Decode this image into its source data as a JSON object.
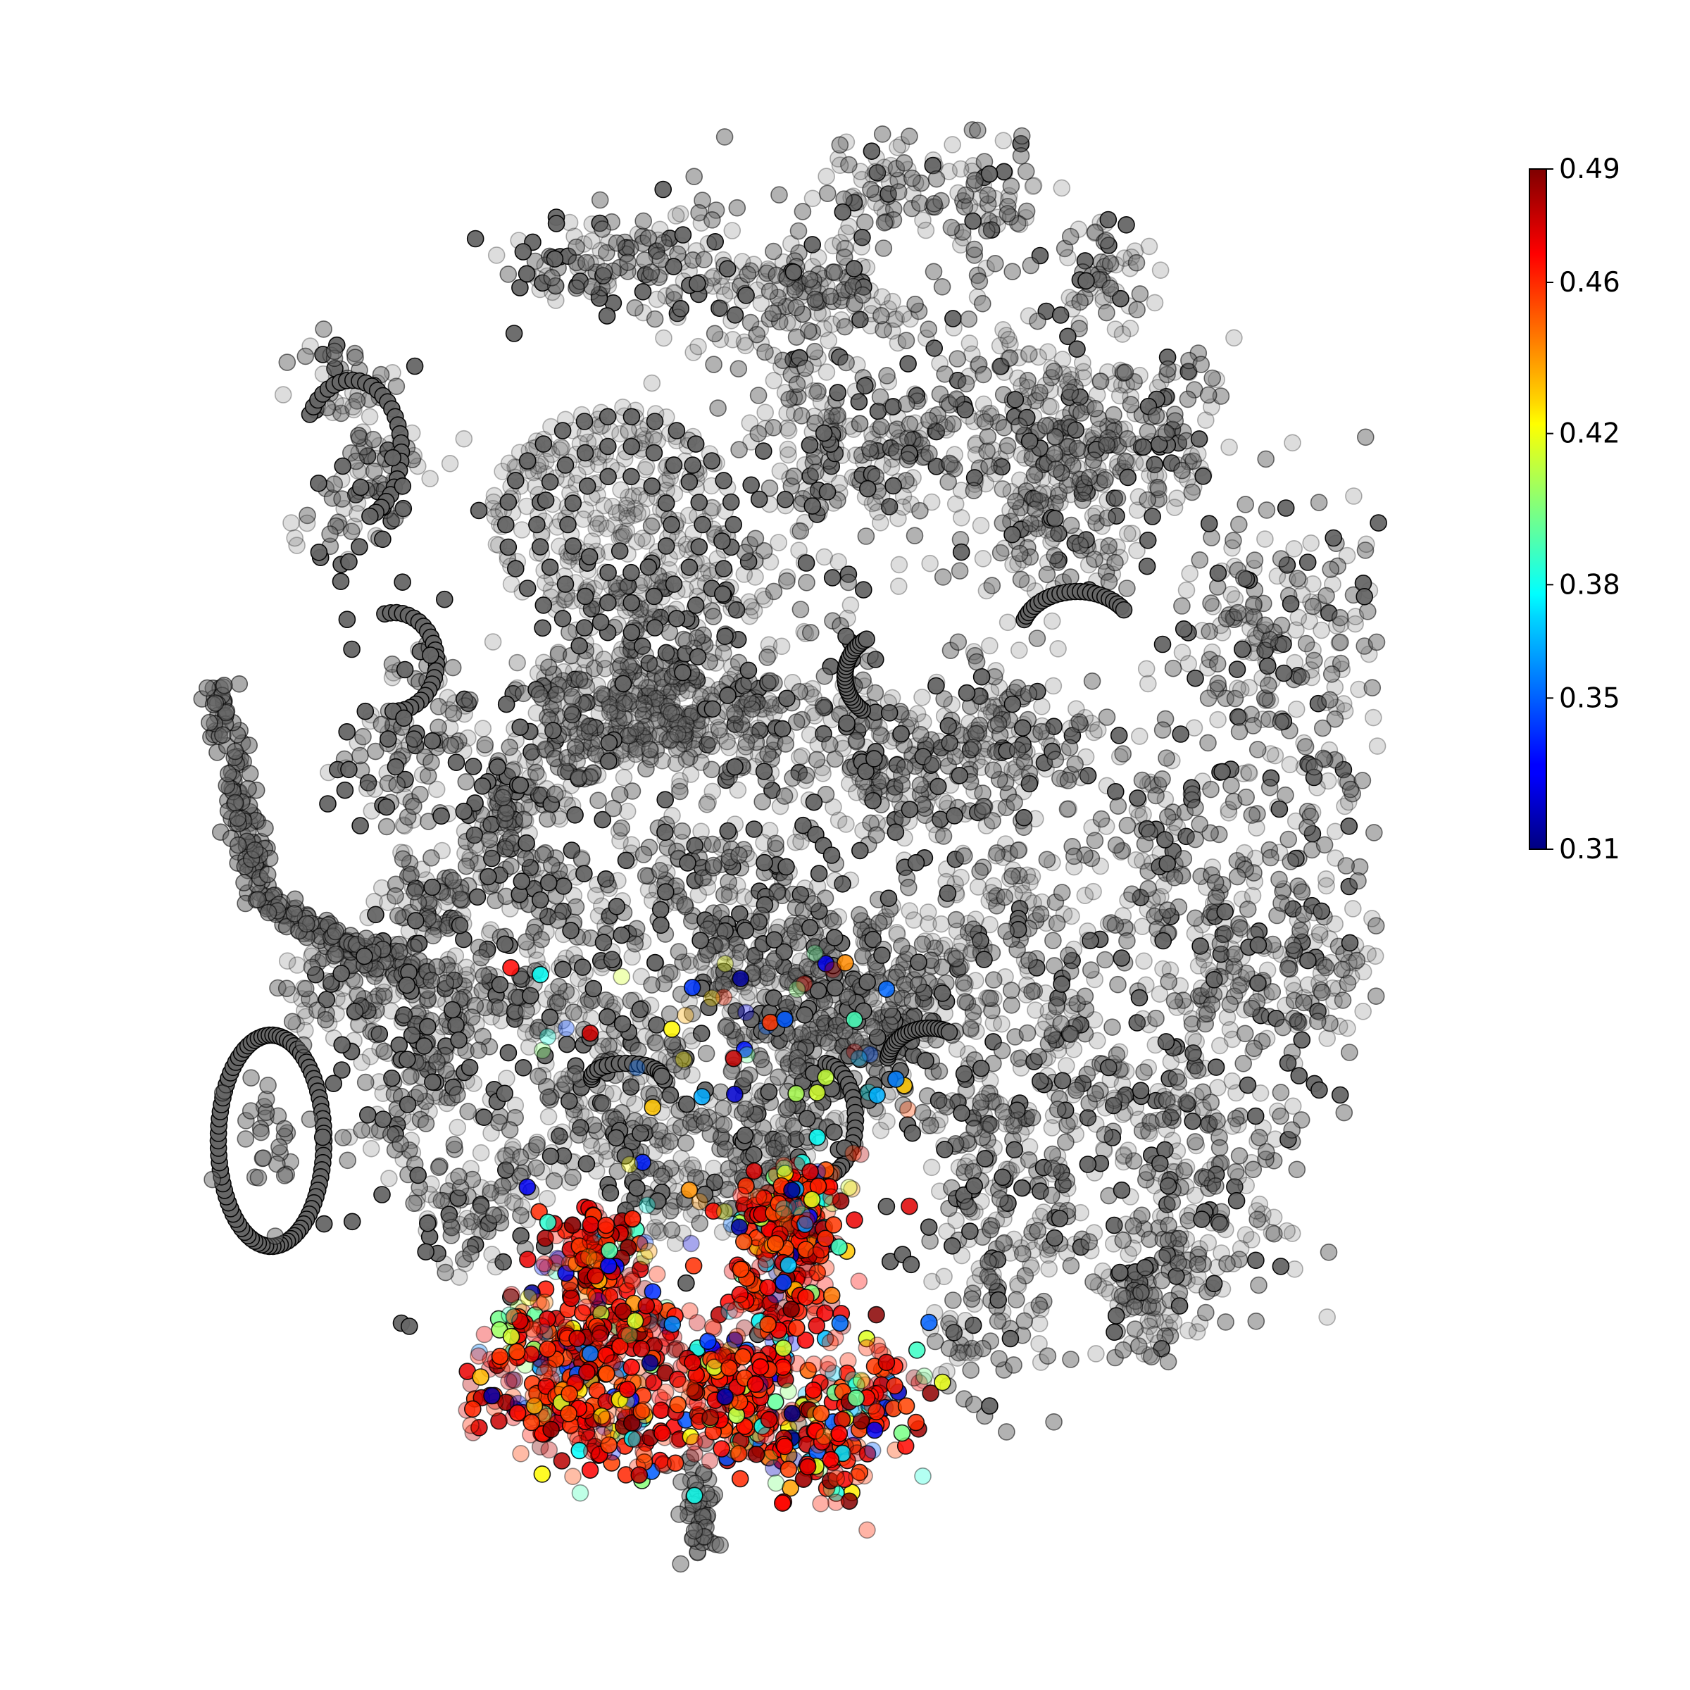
{
  "chart_data": {
    "type": "scatter",
    "title": "",
    "xlabel": "",
    "ylabel": "",
    "axes_visible": false,
    "grid": false,
    "colormap": "jet",
    "background_point_color": "#666666",
    "colorbar": {
      "placement": "right",
      "vmin": 0.31,
      "vmax": 0.49,
      "ticks": [
        "0.31",
        "0.35",
        "0.38",
        "0.42",
        "0.46",
        "0.49"
      ],
      "tick_values": [
        0.31,
        0.35,
        0.38,
        0.42,
        0.46,
        0.49
      ]
    },
    "highlighted_region": "lower-center",
    "highlighted_value_range": [
      0.31,
      0.49
    ],
    "dominant_highlight_value": 0.48
  }
}
